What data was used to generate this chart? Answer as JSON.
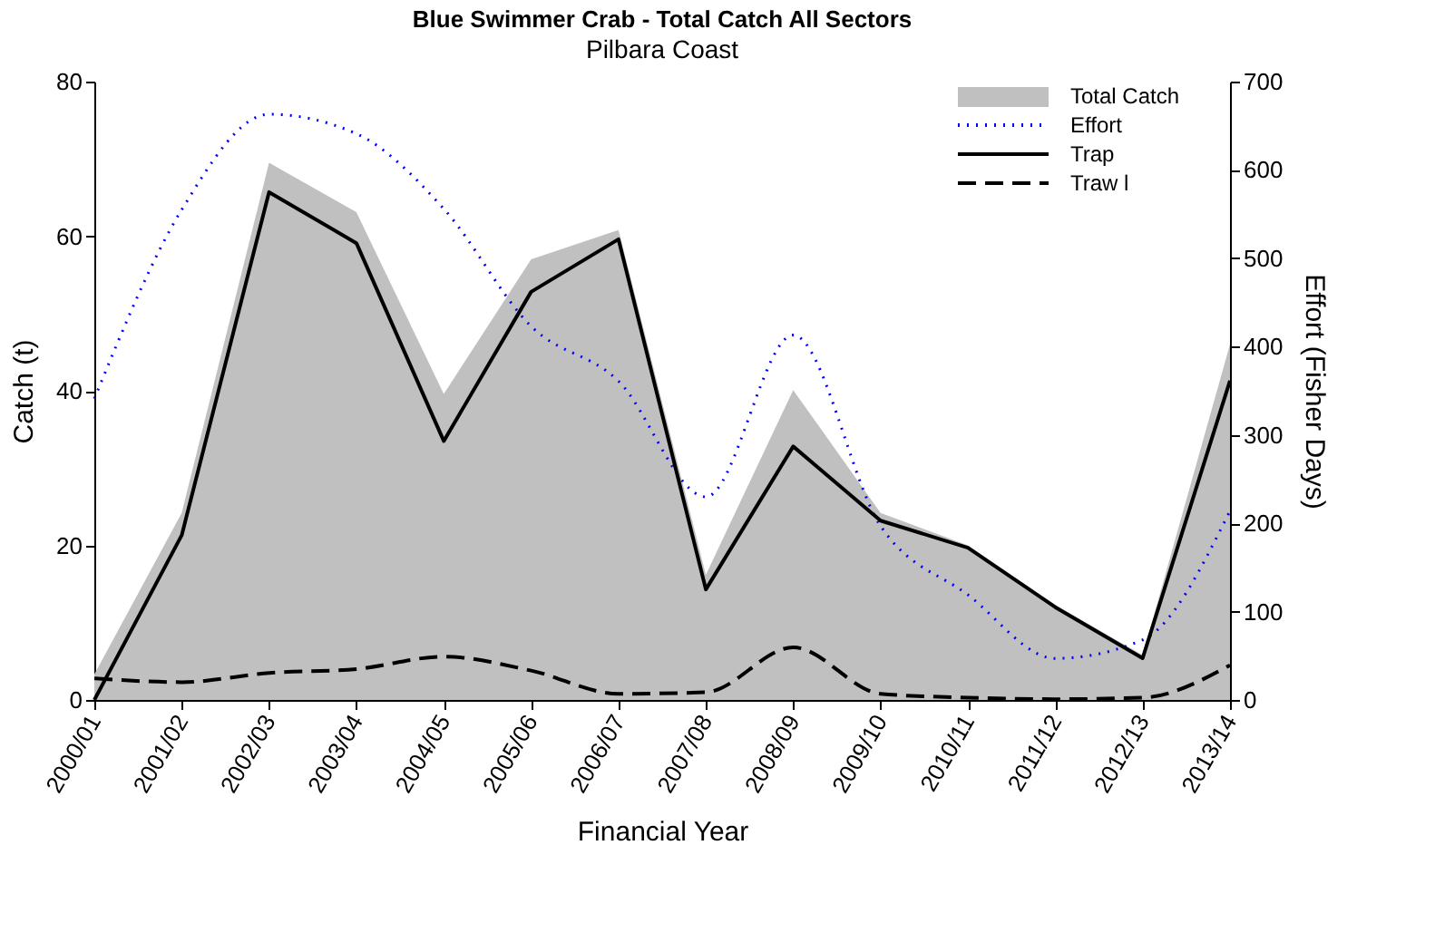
{
  "chart_data": {
    "type": "line",
    "title": "Blue Swimmer Crab - Total Catch All Sectors",
    "subtitle": "Pilbara Coast",
    "xlabel": "Financial Year",
    "ylabel": "Catch (t)",
    "y2label": "Effort (Fisher Days)",
    "categories": [
      "2000/01",
      "2001/02",
      "2002/03",
      "2003/04",
      "2004/05",
      "2005/06",
      "2006/07",
      "2007/08",
      "2008/09",
      "2009/10",
      "2010/11",
      "2011/12",
      "2012/13",
      "2013/14"
    ],
    "series": [
      {
        "name": "Total Catch",
        "type": "area",
        "color": "#c0c0c0",
        "values": [
          3.3,
          24.2,
          69.5,
          63.1,
          39.6,
          57,
          60.8,
          16.2,
          40.1,
          24.2,
          20,
          12.3,
          5.8,
          46
        ]
      },
      {
        "name": "Effort",
        "axis": "y2",
        "line_style": "dotted",
        "color": "#0000ff",
        "values": [
          341,
          555,
          663,
          641,
          556,
          423,
          361,
          230,
          413,
          197,
          119,
          47,
          68,
          214
        ]
      },
      {
        "name": "Trap",
        "line_style": "solid",
        "color": "#000000",
        "values": [
          0,
          21.3,
          65.7,
          59.1,
          33.5,
          52.8,
          59.6,
          14.3,
          32.8,
          23.2,
          19.7,
          12,
          5.4,
          41.3
        ]
      },
      {
        "name": "Traw l",
        "line_style": "dashed",
        "color": "#000000",
        "values": [
          2.8,
          2.3,
          3.5,
          4,
          5.6,
          3.8,
          0.8,
          1.0,
          6.8,
          0.8,
          0.3,
          0.1,
          0.3,
          4.5
        ]
      }
    ],
    "ylim": [
      0,
      80
    ],
    "yticks": [
      0,
      20,
      40,
      60,
      80
    ],
    "y2lim": [
      0,
      700
    ],
    "y2ticks": [
      0,
      100,
      200,
      300,
      400,
      500,
      600,
      700
    ],
    "grid": false,
    "legend": "top right",
    "marker": "none"
  }
}
